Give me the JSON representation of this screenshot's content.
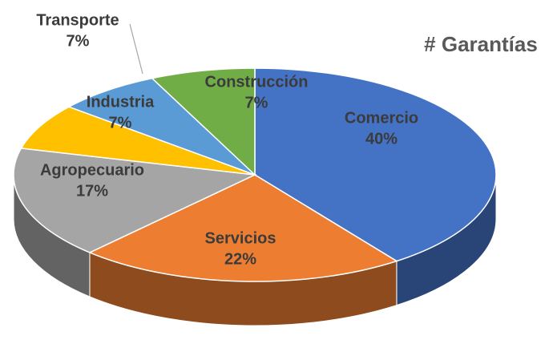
{
  "chart_data": {
    "type": "pie",
    "title": "# Garantías",
    "categories": [
      "Comercio",
      "Servicios",
      "Agropecuario",
      "Industria",
      "Transporte",
      "Construcción"
    ],
    "values": [
      40,
      22,
      17,
      7,
      7,
      7
    ],
    "value_labels": [
      "40%",
      "22%",
      "17%",
      "7%",
      "7%",
      "7%"
    ],
    "colors": [
      "#4472c4",
      "#ed7d31",
      "#a5a5a5",
      "#ffc000",
      "#5b9bd5",
      "#70ad47"
    ]
  }
}
